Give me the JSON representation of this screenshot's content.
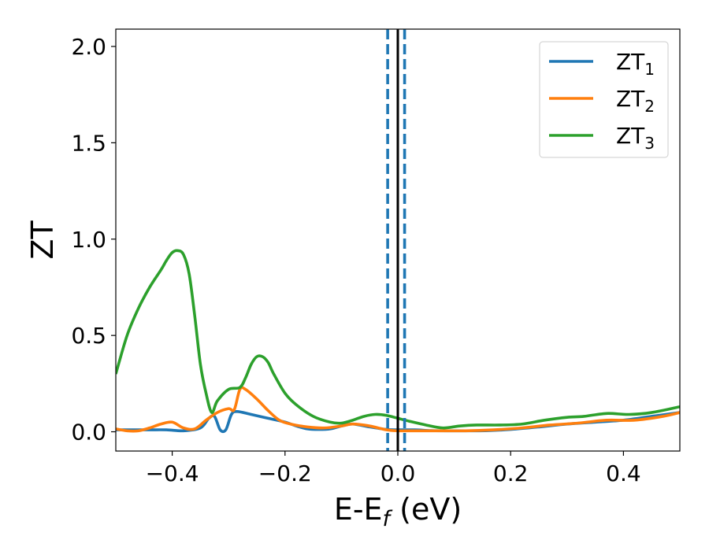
{
  "chart_data": {
    "type": "line",
    "title": "",
    "xlabel": {
      "base": "E-E",
      "sub": "f",
      "suffix": " (eV)"
    },
    "ylabel": "ZT",
    "xlim": [
      -0.5,
      0.5
    ],
    "ylim": [
      -0.1,
      2.09
    ],
    "xticks": [
      -0.4,
      -0.2,
      0.0,
      0.2,
      0.4
    ],
    "xtick_labels": [
      "−0.4",
      "−0.2",
      "0.0",
      "0.2",
      "0.4"
    ],
    "yticks": [
      0.0,
      0.5,
      1.0,
      1.5,
      2.0
    ],
    "ytick_labels": [
      "0.0",
      "0.5",
      "1.0",
      "1.5",
      "2.0"
    ],
    "grid": false,
    "legend_position": "top-right",
    "vlines": [
      {
        "x": 0.0,
        "style": "solid",
        "color": "#000000"
      },
      {
        "x": -0.018,
        "style": "dashed",
        "color": "#1f77b4"
      },
      {
        "x": 0.012,
        "style": "dashed",
        "color": "#1f77b4"
      }
    ],
    "series": [
      {
        "name": "ZT",
        "name_sub": "1",
        "color": "#1f77b4",
        "x": [
          -0.5,
          -0.47,
          -0.44,
          -0.41,
          -0.38,
          -0.35,
          -0.335,
          -0.325,
          -0.315,
          -0.305,
          -0.295,
          -0.285,
          -0.26,
          -0.23,
          -0.2,
          -0.18,
          -0.16,
          -0.14,
          -0.12,
          -0.1,
          -0.08,
          -0.05,
          -0.02,
          0.0,
          0.03,
          0.06,
          0.1,
          0.13,
          0.16,
          0.2,
          0.25,
          0.3,
          0.35,
          0.4,
          0.45,
          0.5
        ],
        "y": [
          0.01,
          0.01,
          0.01,
          0.01,
          0.005,
          0.02,
          0.07,
          0.08,
          0.01,
          0.01,
          0.09,
          0.105,
          0.09,
          0.07,
          0.05,
          0.03,
          0.015,
          0.012,
          0.015,
          0.03,
          0.04,
          0.025,
          0.012,
          0.01,
          0.01,
          0.006,
          0.005,
          0.005,
          0.006,
          0.012,
          0.025,
          0.04,
          0.05,
          0.06,
          0.08,
          0.1
        ]
      },
      {
        "name": "ZT",
        "name_sub": "2",
        "color": "#ff7f0e",
        "x": [
          -0.5,
          -0.48,
          -0.46,
          -0.44,
          -0.42,
          -0.4,
          -0.38,
          -0.36,
          -0.34,
          -0.32,
          -0.3,
          -0.29,
          -0.28,
          -0.27,
          -0.25,
          -0.23,
          -0.21,
          -0.19,
          -0.16,
          -0.13,
          -0.1,
          -0.08,
          -0.05,
          -0.02,
          0.0,
          0.03,
          0.07,
          0.12,
          0.17,
          0.22,
          0.27,
          0.32,
          0.37,
          0.42,
          0.47,
          0.5
        ],
        "y": [
          0.015,
          0.005,
          0.005,
          0.02,
          0.04,
          0.05,
          0.02,
          0.015,
          0.06,
          0.1,
          0.12,
          0.115,
          0.22,
          0.22,
          0.17,
          0.11,
          0.06,
          0.04,
          0.025,
          0.02,
          0.03,
          0.04,
          0.03,
          0.01,
          0.005,
          0.005,
          0.005,
          0.005,
          0.01,
          0.02,
          0.035,
          0.045,
          0.06,
          0.06,
          0.08,
          0.1
        ]
      },
      {
        "name": "ZT",
        "name_sub": "3",
        "color": "#2ca02c",
        "x": [
          -0.5,
          -0.48,
          -0.46,
          -0.44,
          -0.42,
          -0.41,
          -0.4,
          -0.39,
          -0.38,
          -0.37,
          -0.36,
          -0.35,
          -0.34,
          -0.33,
          -0.32,
          -0.3,
          -0.28,
          -0.27,
          -0.26,
          -0.25,
          -0.24,
          -0.23,
          -0.22,
          -0.2,
          -0.18,
          -0.15,
          -0.12,
          -0.1,
          -0.08,
          -0.06,
          -0.04,
          -0.02,
          0.0,
          0.02,
          0.05,
          0.08,
          0.11,
          0.14,
          0.18,
          0.22,
          0.26,
          0.3,
          0.33,
          0.37,
          0.41,
          0.45,
          0.5
        ],
        "y": [
          0.3,
          0.5,
          0.64,
          0.75,
          0.84,
          0.89,
          0.93,
          0.94,
          0.92,
          0.82,
          0.6,
          0.35,
          0.2,
          0.1,
          0.16,
          0.22,
          0.23,
          0.28,
          0.35,
          0.39,
          0.39,
          0.36,
          0.3,
          0.2,
          0.14,
          0.08,
          0.05,
          0.045,
          0.06,
          0.08,
          0.09,
          0.085,
          0.07,
          0.055,
          0.035,
          0.02,
          0.03,
          0.035,
          0.035,
          0.04,
          0.06,
          0.075,
          0.08,
          0.095,
          0.09,
          0.1,
          0.13
        ]
      }
    ]
  }
}
